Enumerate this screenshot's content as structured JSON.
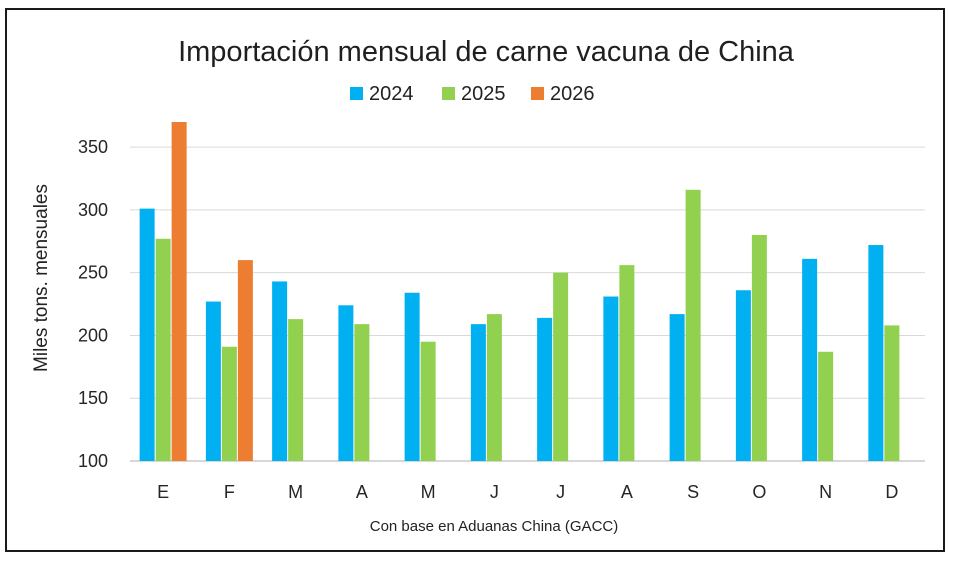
{
  "chart_data": {
    "type": "bar",
    "title": "Importación mensual de carne vacuna de China",
    "ylabel": "Miles tons. mensuales",
    "xlabel": "Con base en Aduanas China (GACC)",
    "ylim": [
      100,
      370
    ],
    "yticks": [
      100,
      150,
      200,
      250,
      300,
      350
    ],
    "grid": true,
    "legend_position": "top-center",
    "categories": [
      "E",
      "F",
      "M",
      "A",
      "M",
      "J",
      "J",
      "A",
      "S",
      "O",
      "N",
      "D"
    ],
    "series": [
      {
        "name": "2024",
        "color": "#00b0f0",
        "values": [
          301,
          227,
          243,
          224,
          234,
          209,
          214,
          231,
          217,
          236,
          261,
          272
        ]
      },
      {
        "name": "2025",
        "color": "#92d050",
        "values": [
          277,
          191,
          213,
          209,
          195,
          217,
          250,
          256,
          316,
          280,
          187,
          208
        ]
      },
      {
        "name": "2026",
        "color": "#ed7d31",
        "values": [
          370,
          260,
          null,
          null,
          null,
          null,
          null,
          null,
          null,
          null,
          null,
          null
        ]
      }
    ]
  }
}
